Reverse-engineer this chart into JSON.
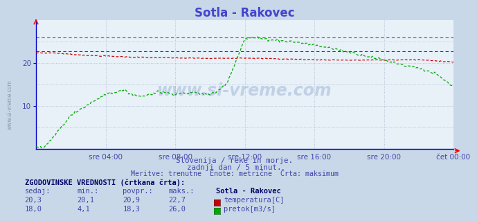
{
  "title": "Sotla - Rakovec",
  "title_color": "#4444cc",
  "title_fontsize": 12,
  "plot_bg_color": "#e8f0f8",
  "outer_bg_color": "#c8d8e8",
  "x_tick_labels": [
    "sre 04:00",
    "sre 08:00",
    "sre 12:00",
    "sre 16:00",
    "sre 20:00",
    "čet 00:00"
  ],
  "x_tick_positions": [
    4,
    8,
    12,
    16,
    20,
    24
  ],
  "ylim": [
    0,
    30
  ],
  "y_ticks": [
    10,
    20
  ],
  "grid_color": "#aabbcc",
  "temp_color": "#cc0000",
  "flow_color": "#00aa00",
  "temp_max_value": 22.7,
  "flow_max_value": 26.0,
  "watermark": "www.si-vreme.com",
  "subtitle1": "Slovenija / reke in morje.",
  "subtitle2": "zadnji dan / 5 minut.",
  "subtitle3": "Meritve: trenutne  Enote: metrične  Črta: maksimum",
  "subtitle_color": "#4444aa",
  "legend_title": "ZGODOVINSKE VREDNOSTI (črtkana črta):",
  "legend_color": "#000066",
  "legend_headers": [
    "sedaj:",
    "min.:",
    "povpr.:",
    "maks.:",
    "Sotla - Rakovec"
  ],
  "legend_row1": [
    "20,3",
    "20,1",
    "20,9",
    "22,7",
    "temperatura[C]"
  ],
  "legend_row2": [
    "18,0",
    "4,1",
    "18,3",
    "26,0",
    "pretok[m3/s]"
  ],
  "legend_data_color": "#4444aa"
}
